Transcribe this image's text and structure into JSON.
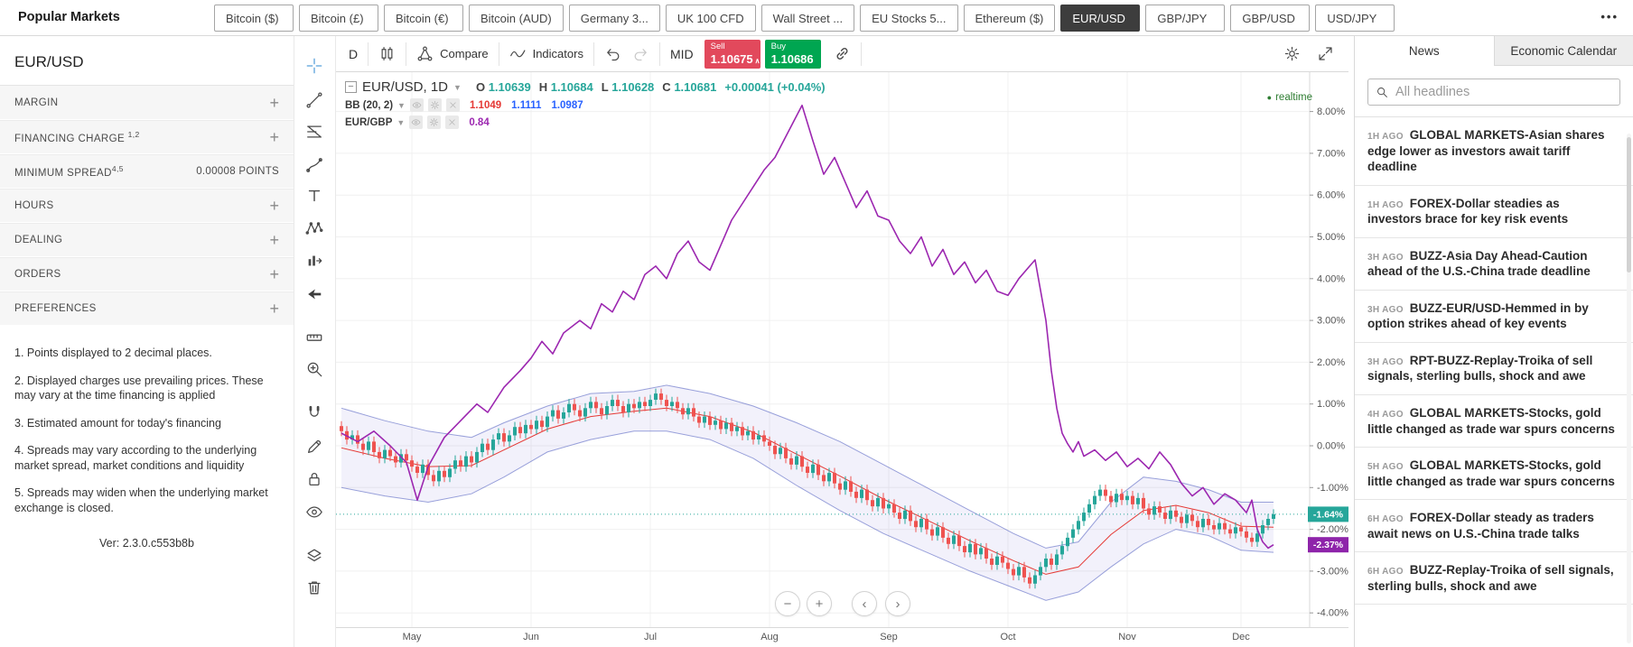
{
  "top_bar": {
    "title": "Popular Markets",
    "more_icon": "•••",
    "tabs": [
      {
        "label": "Bitcoin ($)",
        "active": false
      },
      {
        "label": "Bitcoin (£)",
        "active": false
      },
      {
        "label": "Bitcoin (€)",
        "active": false
      },
      {
        "label": "Bitcoin (AUD)",
        "active": false
      },
      {
        "label": "Germany 3...",
        "active": false
      },
      {
        "label": "UK 100 CFD",
        "active": false
      },
      {
        "label": "Wall Street ...",
        "active": false
      },
      {
        "label": "EU Stocks 5...",
        "active": false
      },
      {
        "label": "Ethereum ($)",
        "active": false
      },
      {
        "label": "EUR/USD",
        "active": true
      },
      {
        "label": "GBP/JPY",
        "active": false
      },
      {
        "label": "GBP/USD",
        "active": false
      },
      {
        "label": "USD/JPY",
        "active": false
      }
    ]
  },
  "sidebar": {
    "symbol": "EUR/USD",
    "rows": [
      {
        "label": "MARGIN",
        "sup": "",
        "value": "",
        "expandable": true
      },
      {
        "label": "FINANCING CHARGE ",
        "sup": "1,2",
        "value": "",
        "expandable": true
      },
      {
        "label": "MINIMUM SPREAD",
        "sup": "4,5",
        "value": "0.00008 POINTS",
        "expandable": false
      },
      {
        "label": "HOURS",
        "sup": "",
        "value": "",
        "expandable": true
      },
      {
        "label": "DEALING",
        "sup": "",
        "value": "",
        "expandable": true
      },
      {
        "label": "ORDERS",
        "sup": "",
        "value": "",
        "expandable": true
      },
      {
        "label": "PREFERENCES",
        "sup": "",
        "value": "",
        "expandable": true
      }
    ],
    "footnotes": [
      "1. Points displayed to 2 decimal places.",
      "2. Displayed charges use prevailing prices. These may vary at the time financing is applied",
      "3. Estimated amount for today's financing",
      "4. Spreads may vary according to the underlying market spread, market conditions and liquidity",
      "5. Spreads may widen when the underlying market exchange is closed."
    ],
    "version": "Ver: 2.3.0.c553b8b"
  },
  "drawing_toolbar": {
    "tools": [
      "crosshair",
      "trend-line",
      "gann-fib",
      "brush",
      "text",
      "xabcd-pattern",
      "forecast",
      "arrow-cursor",
      "measure",
      "zoom-in",
      "magnet",
      "edit-pencil",
      "lock",
      "eye",
      "layers",
      "trash"
    ]
  },
  "chart_toolbar": {
    "interval": "D",
    "compare_label": "Compare",
    "indicators_label": "Indicators",
    "mid_label": "MID",
    "sell": {
      "label": "Sell",
      "price": "1.10675"
    },
    "buy": {
      "label": "Buy",
      "price": "1.10686"
    }
  },
  "legend": {
    "symbol_line": {
      "symbol": "EUR/USD, 1D",
      "o_label": "O",
      "o": "1.10639",
      "h_label": "H",
      "h": "1.10684",
      "l_label": "L",
      "l": "1.10628",
      "c_label": "C",
      "c": "1.10681",
      "change": "+0.00041 (+0.04%)"
    },
    "bb": {
      "label": "BB (20, 2)",
      "v1": "1.1049",
      "v2": "1.1111",
      "v3": "1.0987"
    },
    "compare": {
      "label": "EUR/GBP",
      "v": "0.84"
    },
    "realtime_label": "realtime"
  },
  "chart_controls": {
    "zoom_out": "−",
    "zoom_in": "+",
    "pan_left": "‹",
    "pan_right": "›"
  },
  "chart_data": {
    "type": "candlestick",
    "symbol": "EUR/USD",
    "interval": "1D",
    "scale": "percent",
    "overlays": [
      "BB (20, 2)",
      "EUR/GBP compare"
    ],
    "ylim": [
      -4.4,
      8.9
    ],
    "y_ticks": [
      {
        "v": 8,
        "label": "8.00%"
      },
      {
        "v": 7,
        "label": "7.00%"
      },
      {
        "v": 6,
        "label": "6.00%"
      },
      {
        "v": 5,
        "label": "5.00%"
      },
      {
        "v": 4,
        "label": "4.00%"
      },
      {
        "v": 3,
        "label": "3.00%"
      },
      {
        "v": 2,
        "label": "2.00%"
      },
      {
        "v": 1,
        "label": "1.00%"
      },
      {
        "v": 0,
        "label": "0.00%"
      },
      {
        "v": -1,
        "label": "-1.00%"
      },
      {
        "v": -2,
        "label": "-2.00%"
      },
      {
        "v": -3,
        "label": "-3.00%"
      },
      {
        "v": -4,
        "label": "-4.00%"
      }
    ],
    "months": [
      {
        "label": "May",
        "day": 13
      },
      {
        "label": "Jun",
        "day": 35
      },
      {
        "label": "Jul",
        "day": 57
      },
      {
        "label": "Aug",
        "day": 79
      },
      {
        "label": "Sep",
        "day": 101
      },
      {
        "label": "Oct",
        "day": 123
      },
      {
        "label": "Nov",
        "day": 145
      },
      {
        "label": "Dec",
        "day": 166
      }
    ],
    "closes": [
      0.35,
      0.15,
      0.25,
      0.05,
      -0.1,
      0.1,
      -0.15,
      -0.3,
      -0.1,
      -0.25,
      -0.4,
      -0.2,
      -0.35,
      -0.5,
      -0.65,
      -0.45,
      -0.7,
      -0.85,
      -0.6,
      -0.75,
      -0.55,
      -0.35,
      -0.5,
      -0.25,
      -0.4,
      -0.15,
      0.05,
      -0.1,
      0.15,
      0.3,
      0.1,
      0.25,
      0.45,
      0.3,
      0.5,
      0.4,
      0.6,
      0.45,
      0.7,
      0.85,
      0.65,
      0.8,
      1.0,
      0.85,
      0.7,
      0.9,
      1.05,
      0.9,
      0.75,
      0.95,
      1.1,
      0.95,
      0.8,
      1.0,
      0.9,
      1.05,
      0.95,
      1.1,
      1.25,
      1.1,
      0.95,
      1.05,
      0.9,
      0.75,
      0.9,
      0.7,
      0.55,
      0.7,
      0.5,
      0.6,
      0.4,
      0.55,
      0.35,
      0.45,
      0.25,
      0.35,
      0.15,
      0.25,
      0.1,
      0.0,
      -0.2,
      -0.05,
      -0.3,
      -0.45,
      -0.25,
      -0.5,
      -0.65,
      -0.45,
      -0.7,
      -0.85,
      -0.65,
      -0.9,
      -1.05,
      -0.85,
      -1.1,
      -1.25,
      -1.05,
      -1.3,
      -1.45,
      -1.25,
      -1.5,
      -1.4,
      -1.6,
      -1.75,
      -1.55,
      -1.8,
      -1.95,
      -1.75,
      -2.0,
      -2.15,
      -1.95,
      -2.2,
      -2.35,
      -2.15,
      -2.4,
      -2.55,
      -2.35,
      -2.6,
      -2.45,
      -2.7,
      -2.85,
      -2.65,
      -2.8,
      -2.95,
      -3.1,
      -2.9,
      -3.15,
      -3.3,
      -3.1,
      -2.9,
      -2.7,
      -2.85,
      -2.6,
      -2.4,
      -2.2,
      -2.0,
      -1.8,
      -1.6,
      -1.4,
      -1.2,
      -1.05,
      -1.2,
      -1.35,
      -1.15,
      -1.3,
      -1.2,
      -1.4,
      -1.25,
      -1.5,
      -1.65,
      -1.45,
      -1.6,
      -1.75,
      -1.55,
      -1.7,
      -1.85,
      -1.65,
      -1.8,
      -1.95,
      -1.75,
      -1.9,
      -2.0,
      -1.85,
      -2.0,
      -2.1,
      -1.95,
      -2.05,
      -2.2,
      -2.3,
      -2.1,
      -1.9,
      -1.75,
      -1.64
    ],
    "bb_upper": [
      [
        0,
        0.9
      ],
      [
        8,
        0.6
      ],
      [
        16,
        0.35
      ],
      [
        24,
        0.2
      ],
      [
        30,
        0.55
      ],
      [
        38,
        0.95
      ],
      [
        46,
        1.25
      ],
      [
        54,
        1.3
      ],
      [
        60,
        1.45
      ],
      [
        68,
        1.25
      ],
      [
        76,
        0.95
      ],
      [
        84,
        0.55
      ],
      [
        92,
        0.1
      ],
      [
        100,
        -0.45
      ],
      [
        108,
        -1.0
      ],
      [
        116,
        -1.55
      ],
      [
        124,
        -2.1
      ],
      [
        130,
        -2.45
      ],
      [
        136,
        -2.3
      ],
      [
        142,
        -1.35
      ],
      [
        148,
        -0.75
      ],
      [
        154,
        -0.85
      ],
      [
        160,
        -1.05
      ],
      [
        166,
        -1.35
      ],
      [
        172,
        -1.35
      ]
    ],
    "bb_lower": [
      [
        0,
        -1.0
      ],
      [
        8,
        -1.2
      ],
      [
        16,
        -1.35
      ],
      [
        24,
        -1.15
      ],
      [
        30,
        -0.75
      ],
      [
        38,
        -0.15
      ],
      [
        46,
        0.15
      ],
      [
        54,
        0.35
      ],
      [
        60,
        0.35
      ],
      [
        68,
        0.15
      ],
      [
        76,
        -0.3
      ],
      [
        84,
        -0.95
      ],
      [
        92,
        -1.55
      ],
      [
        100,
        -2.1
      ],
      [
        108,
        -2.55
      ],
      [
        116,
        -3.0
      ],
      [
        124,
        -3.4
      ],
      [
        130,
        -3.7
      ],
      [
        136,
        -3.5
      ],
      [
        142,
        -2.9
      ],
      [
        148,
        -2.35
      ],
      [
        154,
        -2.0
      ],
      [
        160,
        -2.15
      ],
      [
        166,
        -2.5
      ],
      [
        172,
        -2.55
      ]
    ],
    "compare_series": {
      "name": "EUR/GBP",
      "points": [
        [
          0,
          0.3
        ],
        [
          3,
          0.1
        ],
        [
          6,
          0.35
        ],
        [
          9,
          0.0
        ],
        [
          12,
          -0.4
        ],
        [
          14,
          -1.3
        ],
        [
          16,
          -0.5
        ],
        [
          19,
          0.2
        ],
        [
          22,
          0.6
        ],
        [
          25,
          1.0
        ],
        [
          27,
          0.8
        ],
        [
          30,
          1.4
        ],
        [
          33,
          1.8
        ],
        [
          35,
          2.1
        ],
        [
          37,
          2.5
        ],
        [
          39,
          2.2
        ],
        [
          41,
          2.7
        ],
        [
          44,
          3.0
        ],
        [
          46,
          2.8
        ],
        [
          48,
          3.4
        ],
        [
          50,
          3.2
        ],
        [
          52,
          3.7
        ],
        [
          54,
          3.5
        ],
        [
          56,
          4.1
        ],
        [
          58,
          4.3
        ],
        [
          60,
          4.0
        ],
        [
          62,
          4.6
        ],
        [
          64,
          4.9
        ],
        [
          66,
          4.4
        ],
        [
          68,
          4.2
        ],
        [
          70,
          4.8
        ],
        [
          72,
          5.4
        ],
        [
          74,
          5.8
        ],
        [
          76,
          6.2
        ],
        [
          78,
          6.6
        ],
        [
          80,
          6.9
        ],
        [
          82,
          7.4
        ],
        [
          84,
          7.9
        ],
        [
          85,
          8.15
        ],
        [
          87,
          7.3
        ],
        [
          89,
          6.5
        ],
        [
          91,
          6.9
        ],
        [
          93,
          6.3
        ],
        [
          95,
          5.7
        ],
        [
          97,
          6.1
        ],
        [
          99,
          5.5
        ],
        [
          101,
          5.4
        ],
        [
          103,
          4.9
        ],
        [
          105,
          4.6
        ],
        [
          107,
          5.0
        ],
        [
          109,
          4.3
        ],
        [
          111,
          4.7
        ],
        [
          113,
          4.1
        ],
        [
          115,
          4.4
        ],
        [
          117,
          3.9
        ],
        [
          119,
          4.2
        ],
        [
          121,
          3.7
        ],
        [
          123,
          3.6
        ],
        [
          125,
          4.0
        ],
        [
          127,
          4.3
        ],
        [
          128,
          4.45
        ],
        [
          130,
          3.0
        ],
        [
          131,
          1.8
        ],
        [
          132,
          0.9
        ],
        [
          133,
          0.3
        ],
        [
          134,
          0.05
        ],
        [
          135,
          -0.15
        ],
        [
          136,
          0.1
        ],
        [
          137,
          -0.25
        ],
        [
          139,
          -0.1
        ],
        [
          141,
          -0.35
        ],
        [
          143,
          -0.15
        ],
        [
          145,
          -0.5
        ],
        [
          147,
          -0.3
        ],
        [
          149,
          -0.55
        ],
        [
          151,
          -0.15
        ],
        [
          153,
          -0.45
        ],
        [
          155,
          -0.9
        ],
        [
          157,
          -1.2
        ],
        [
          159,
          -1.0
        ],
        [
          161,
          -1.4
        ],
        [
          163,
          -1.15
        ],
        [
          165,
          -1.3
        ],
        [
          167,
          -1.6
        ],
        [
          168,
          -1.3
        ],
        [
          169,
          -2.0
        ],
        [
          170,
          -2.3
        ],
        [
          171,
          -2.45
        ],
        [
          172,
          -2.37
        ]
      ]
    },
    "current_pct": -1.64,
    "current_label": "-1.64%",
    "compare_pct": -2.37,
    "compare_label": "-2.37%",
    "colors": {
      "up": "#26a69a",
      "down": "#ef5350",
      "compare": "#9c27b0",
      "bb_fill": "rgba(90,80,200,0.08)",
      "bb_line": "rgba(73,87,189,0.55)",
      "bb_mid": "#e53935",
      "current_badge": "#26a69a",
      "compare_badge": "#8e24aa",
      "grid": "#f0f0f0"
    }
  },
  "news_panel": {
    "tabs": [
      {
        "label": "News",
        "active": true
      },
      {
        "label": "Economic Calendar",
        "active": false
      }
    ],
    "search_placeholder": "All headlines",
    "items": [
      {
        "time": "1H AGO",
        "headline": "GLOBAL MARKETS-Asian shares edge lower as investors await tariff deadline"
      },
      {
        "time": "1H AGO",
        "headline": "FOREX-Dollar steadies as investors brace for key risk events"
      },
      {
        "time": "3H AGO",
        "headline": "BUZZ-Asia Day Ahead-Caution ahead of the U.S.-China trade deadline"
      },
      {
        "time": "3H AGO",
        "headline": "BUZZ-EUR/USD-Hemmed in by option strikes ahead of key events"
      },
      {
        "time": "3H AGO",
        "headline": "RPT-BUZZ-Replay-Troika of sell signals, sterling bulls, shock and awe"
      },
      {
        "time": "4H AGO",
        "headline": "GLOBAL MARKETS-Stocks, gold little changed as trade war spurs concerns"
      },
      {
        "time": "5H AGO",
        "headline": "GLOBAL MARKETS-Stocks, gold little changed as trade war spurs concerns"
      },
      {
        "time": "6H AGO",
        "headline": "FOREX-Dollar steady as traders await news on U.S.-China trade talks"
      },
      {
        "time": "6H AGO",
        "headline": "BUZZ-Replay-Troika of sell signals, sterling bulls, shock and awe"
      }
    ]
  }
}
